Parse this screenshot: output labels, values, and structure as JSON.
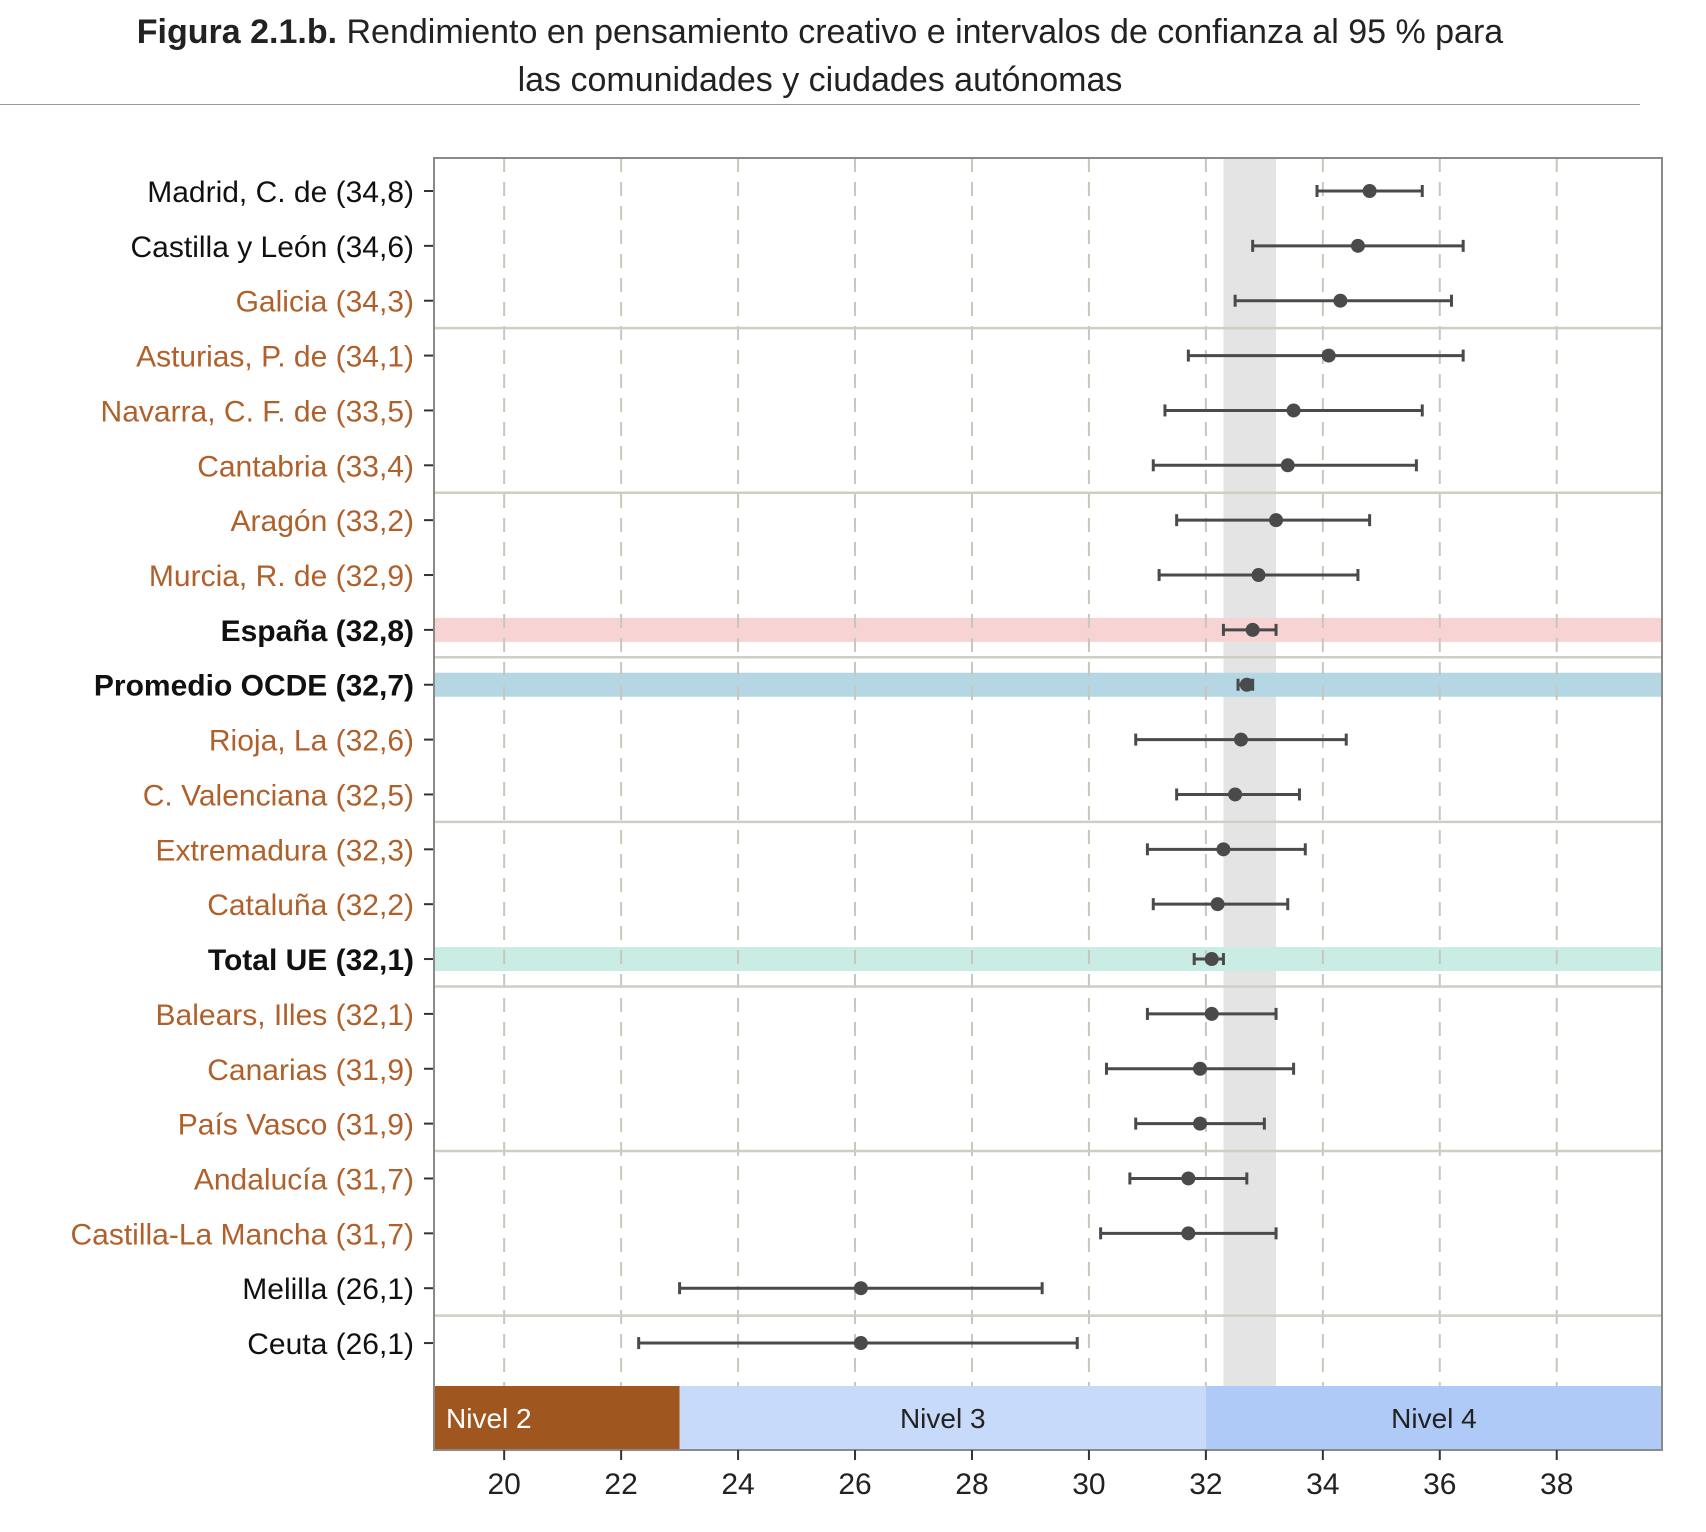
{
  "header": {
    "figure_number": "Figura 2.1.b.",
    "title_line1": "Rendimiento en pensamiento creativo e intervalos de confianza al 95 % para",
    "title_line2": "las comunidades y ciudades autónomas"
  },
  "chart_data": {
    "type": "scatter",
    "title": "Figura 2.1.b. Rendimiento en pensamiento creativo e intervalos de confianza al 95 % para las comunidades y ciudades autónomas",
    "xlabel": "",
    "ylabel": "",
    "xlim": [
      18.8,
      39.8
    ],
    "x_ticks": [
      20,
      22,
      24,
      26,
      28,
      30,
      32,
      34,
      36,
      38
    ],
    "grid": "vertical dashed",
    "oecd_band": [
      32.3,
      33.2
    ],
    "levels": [
      {
        "label": "Nivel 2",
        "from": 18.8,
        "to": 23.0,
        "color": "#a0561f",
        "text_color": "#ffffff"
      },
      {
        "label": "Nivel 3",
        "from": 23.0,
        "to": 32.0,
        "color": "#c8dafa",
        "text_color": "#222222"
      },
      {
        "label": "Nivel 4",
        "from": 32.0,
        "to": 39.8,
        "color": "#afcaf7",
        "text_color": "#222222"
      }
    ],
    "colors": {
      "point": "#4a4a4a",
      "label_default": "#111111",
      "label_ccaa": "#b0602a",
      "espana_band": "#f7d3d3",
      "oecd_row_band": "#b5d6e3",
      "ue_band": "#c9ede5",
      "separator": "#cfcdc4",
      "grid": "#c8c7bc",
      "gray_band": "#e4e4e4"
    },
    "series": [
      {
        "label": "Madrid, C. de (34,8)",
        "value": 34.8,
        "lo": 33.9,
        "hi": 35.7,
        "style": "black"
      },
      {
        "label": "Castilla y León (34,6)",
        "value": 34.6,
        "lo": 32.8,
        "hi": 36.4,
        "style": "black"
      },
      {
        "label": "Galicia (34,3)",
        "value": 34.3,
        "lo": 32.5,
        "hi": 36.2,
        "style": "ccaa"
      },
      {
        "label": "Asturias, P. de (34,1)",
        "value": 34.1,
        "lo": 31.7,
        "hi": 36.4,
        "style": "ccaa"
      },
      {
        "label": "Navarra, C. F. de (33,5)",
        "value": 33.5,
        "lo": 31.3,
        "hi": 35.7,
        "style": "ccaa"
      },
      {
        "label": "Cantabria (33,4)",
        "value": 33.4,
        "lo": 31.1,
        "hi": 35.6,
        "style": "ccaa"
      },
      {
        "label": "Aragón (33,2)",
        "value": 33.2,
        "lo": 31.5,
        "hi": 34.8,
        "style": "ccaa"
      },
      {
        "label": "Murcia, R. de (32,9)",
        "value": 32.9,
        "lo": 31.2,
        "hi": 34.6,
        "style": "ccaa"
      },
      {
        "label": "España (32,8)",
        "value": 32.8,
        "lo": 32.3,
        "hi": 33.2,
        "style": "bold",
        "band": "espana"
      },
      {
        "label": "Promedio OCDE (32,7)",
        "value": 32.7,
        "lo": 32.55,
        "hi": 32.8,
        "style": "bold",
        "band": "oecd"
      },
      {
        "label": "Rioja, La (32,6)",
        "value": 32.6,
        "lo": 30.8,
        "hi": 34.4,
        "style": "ccaa"
      },
      {
        "label": "C. Valenciana (32,5)",
        "value": 32.5,
        "lo": 31.5,
        "hi": 33.6,
        "style": "ccaa"
      },
      {
        "label": "Extremadura (32,3)",
        "value": 32.3,
        "lo": 31.0,
        "hi": 33.7,
        "style": "ccaa"
      },
      {
        "label": "Cataluña (32,2)",
        "value": 32.2,
        "lo": 31.1,
        "hi": 33.4,
        "style": "ccaa"
      },
      {
        "label": "Total UE (32,1)",
        "value": 32.1,
        "lo": 31.8,
        "hi": 32.3,
        "style": "bold",
        "band": "ue"
      },
      {
        "label": "Balears, Illes (32,1)",
        "value": 32.1,
        "lo": 31.0,
        "hi": 33.2,
        "style": "ccaa"
      },
      {
        "label": "Canarias (31,9)",
        "value": 31.9,
        "lo": 30.3,
        "hi": 33.5,
        "style": "ccaa"
      },
      {
        "label": "País Vasco (31,9)",
        "value": 31.9,
        "lo": 30.8,
        "hi": 33.0,
        "style": "ccaa"
      },
      {
        "label": "Andalucía (31,7)",
        "value": 31.7,
        "lo": 30.7,
        "hi": 32.7,
        "style": "ccaa"
      },
      {
        "label": "Castilla-La Mancha (31,7)",
        "value": 31.7,
        "lo": 30.2,
        "hi": 33.2,
        "style": "ccaa"
      },
      {
        "label": "Melilla (26,1)",
        "value": 26.1,
        "lo": 23.0,
        "hi": 29.2,
        "style": "black"
      },
      {
        "label": "Ceuta (26,1)",
        "value": 26.1,
        "lo": 22.3,
        "hi": 29.8,
        "style": "black"
      }
    ]
  }
}
